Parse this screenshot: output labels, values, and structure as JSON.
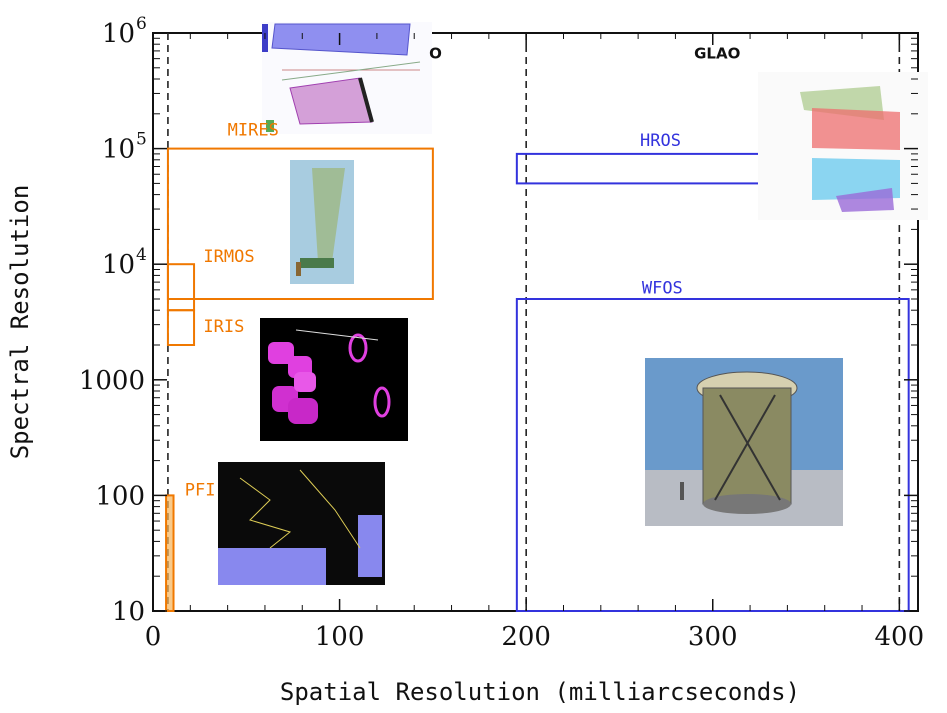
{
  "chart_data": {
    "type": "region",
    "xlabel": "Spatial Resolution (milliarcseconds)",
    "ylabel": "Spectral Resolution",
    "x_scale": "linear",
    "y_scale": "log",
    "xlim": [
      0,
      410
    ],
    "ylim": [
      10,
      1000000
    ],
    "x_ticks": [
      {
        "value": 0,
        "label": "0"
      },
      {
        "value": 100,
        "label": "100"
      },
      {
        "value": 200,
        "label": "200"
      },
      {
        "value": 300,
        "label": "300"
      },
      {
        "value": 400,
        "label": "400"
      }
    ],
    "y_ticks": [
      {
        "value": 10,
        "label": "10"
      },
      {
        "value": 100,
        "label": "100"
      },
      {
        "value": 1000,
        "label": "1000"
      },
      {
        "value": 10000,
        "label": "10",
        "sup": "4"
      },
      {
        "value": 100000,
        "label": "10",
        "sup": "5"
      },
      {
        "value": 1000000,
        "label": "10",
        "sup": "6"
      }
    ],
    "reference_lines": [
      {
        "x": 8
      },
      {
        "x": 200
      },
      {
        "x": 400
      }
    ],
    "annotations": [
      {
        "text": "O",
        "x": 148,
        "y": 600000
      },
      {
        "text": "GLAO",
        "x": 290,
        "y": 600000
      }
    ],
    "instruments": [
      {
        "name": "MIRES",
        "color": "#f07800",
        "x": [
          8,
          150
        ],
        "y": [
          5000,
          100000
        ],
        "label_at": [
          40,
          130000
        ]
      },
      {
        "name": "IRMOS",
        "color": "#f07800",
        "x": [
          8,
          22
        ],
        "y": [
          4000,
          10000
        ],
        "label_at": [
          27,
          10500
        ]
      },
      {
        "name": "IRIS",
        "color": "#f07800",
        "x": [
          8,
          22
        ],
        "y": [
          2000,
          4000
        ],
        "label_at": [
          27,
          2600
        ]
      },
      {
        "name": "PFI",
        "color": "#f07800",
        "x": [
          7,
          11
        ],
        "y": [
          10,
          100
        ],
        "label_at": [
          17,
          100
        ]
      },
      {
        "name": "HROS",
        "color": "#3333dd",
        "x": [
          195,
          330
        ],
        "y": [
          50000,
          90000
        ],
        "label_at": [
          261,
          105000
        ]
      },
      {
        "name": "WFOS",
        "color": "#3333dd",
        "x": [
          195,
          405
        ],
        "y": [
          10,
          5000
        ],
        "label_at": [
          262,
          5600
        ]
      }
    ]
  }
}
